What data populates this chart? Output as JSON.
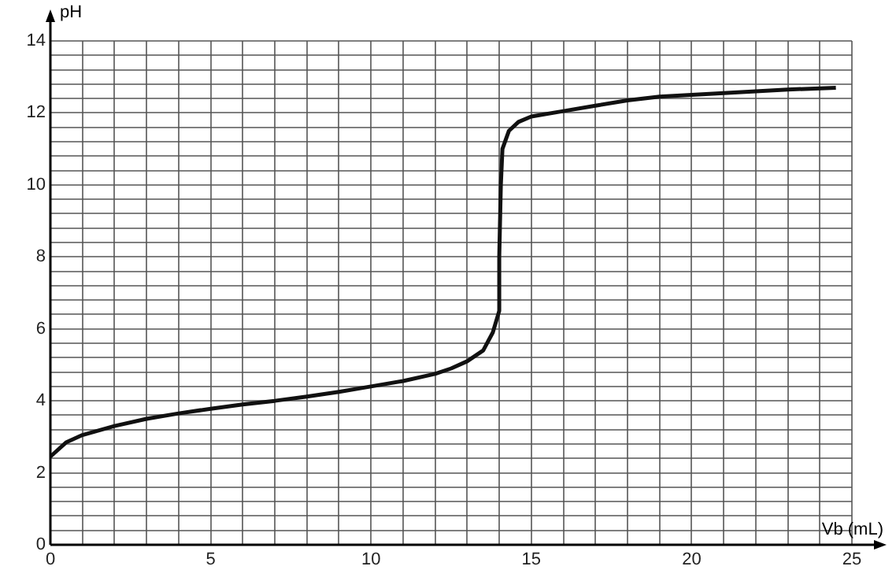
{
  "chart_data": {
    "type": "line",
    "xlabel": "Vb (mL)",
    "ylabel": "pH",
    "xlim": [
      0,
      25
    ],
    "ylim": [
      0,
      14
    ],
    "xticks": [
      0,
      {
        "value": 1,
        "label": null
      },
      {
        "value": 2,
        "label": null
      },
      {
        "value": 3,
        "label": null
      },
      {
        "value": 4,
        "label": null
      },
      5,
      {
        "value": 6,
        "label": null
      },
      {
        "value": 7,
        "label": null
      },
      {
        "value": 8,
        "label": null
      },
      {
        "value": 9,
        "label": null
      },
      10,
      {
        "value": 11,
        "label": null
      },
      {
        "value": 12,
        "label": null
      },
      {
        "value": 13,
        "label": null
      },
      {
        "value": 14,
        "label": null
      },
      15,
      {
        "value": 16,
        "label": null
      },
      {
        "value": 17,
        "label": null
      },
      {
        "value": 18,
        "label": null
      },
      {
        "value": 19,
        "label": null
      },
      20,
      {
        "value": 21,
        "label": null
      },
      {
        "value": 22,
        "label": null
      },
      {
        "value": 23,
        "label": null
      },
      {
        "value": 24,
        "label": null
      },
      25
    ],
    "yticks": [
      0,
      {
        "value": 0.4,
        "label": null
      },
      {
        "value": 0.8,
        "label": null
      },
      {
        "value": 1.2,
        "label": null
      },
      {
        "value": 1.6,
        "label": null
      },
      2,
      {
        "value": 2.4,
        "label": null
      },
      {
        "value": 2.8,
        "label": null
      },
      {
        "value": 3.2,
        "label": null
      },
      {
        "value": 3.6,
        "label": null
      },
      4,
      {
        "value": 4.4,
        "label": null
      },
      {
        "value": 4.8,
        "label": null
      },
      {
        "value": 5.2,
        "label": null
      },
      {
        "value": 5.6,
        "label": null
      },
      6,
      {
        "value": 6.4,
        "label": null
      },
      {
        "value": 6.8,
        "label": null
      },
      {
        "value": 7.2,
        "label": null
      },
      {
        "value": 7.6,
        "label": null
      },
      8,
      {
        "value": 8.4,
        "label": null
      },
      {
        "value": 8.8,
        "label": null
      },
      {
        "value": 9.2,
        "label": null
      },
      {
        "value": 9.6,
        "label": null
      },
      10,
      {
        "value": 10.4,
        "label": null
      },
      {
        "value": 10.8,
        "label": null
      },
      {
        "value": 11.2,
        "label": null
      },
      {
        "value": 11.6,
        "label": null
      },
      12,
      {
        "value": 12.4,
        "label": null
      },
      {
        "value": 12.8,
        "label": null
      },
      {
        "value": 13.2,
        "label": null
      },
      {
        "value": 13.6,
        "label": null
      },
      14
    ],
    "grid": true,
    "marker": "none",
    "line_style": "solid",
    "x": [
      0,
      0.5,
      1,
      2,
      3,
      4,
      5,
      6,
      7,
      8,
      9,
      10,
      11,
      12,
      12.5,
      13,
      13.5,
      13.8,
      14,
      14,
      14.05,
      14.1,
      14.3,
      14.6,
      15,
      16,
      17,
      18,
      19,
      20,
      21,
      22,
      23,
      24.5
    ],
    "series": [
      {
        "color": "#111111",
        "values": [
          2.45,
          2.85,
          3.05,
          3.3,
          3.5,
          3.65,
          3.78,
          3.9,
          4.0,
          4.12,
          4.25,
          4.4,
          4.55,
          4.75,
          4.9,
          5.1,
          5.4,
          5.9,
          6.5,
          8,
          10,
          11,
          11.5,
          11.75,
          11.9,
          12.05,
          12.2,
          12.35,
          12.45,
          12.5,
          12.55,
          12.6,
          12.65,
          12.7
        ]
      }
    ]
  }
}
